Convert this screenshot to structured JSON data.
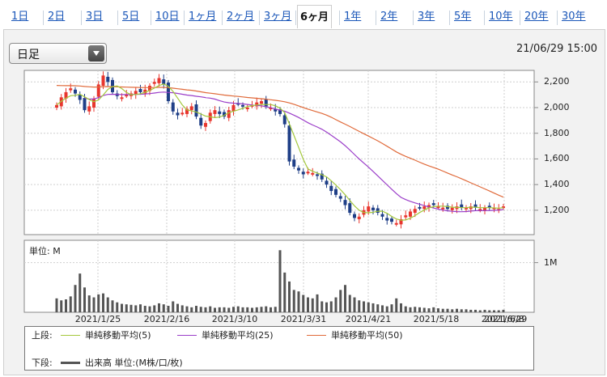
{
  "tabs": [
    {
      "label": "1日",
      "active": false
    },
    {
      "label": "2日",
      "active": false
    },
    {
      "label": "3日",
      "active": false
    },
    {
      "label": "5日",
      "active": false
    },
    {
      "label": "10日",
      "active": false
    },
    {
      "label": "1ヶ月",
      "active": false
    },
    {
      "label": "2ヶ月",
      "active": false
    },
    {
      "label": "3ヶ月",
      "active": false
    },
    {
      "label": "6ヶ月",
      "active": true
    },
    {
      "label": "1年",
      "active": false
    },
    {
      "label": "2年",
      "active": false
    },
    {
      "label": "3年",
      "active": false
    },
    {
      "label": "5年",
      "active": false
    },
    {
      "label": "10年",
      "active": false
    },
    {
      "label": "20年",
      "active": false
    },
    {
      "label": "30年",
      "active": false
    }
  ],
  "period_select": {
    "value": "日足"
  },
  "timestamp": "21/06/29 15:00",
  "colors": {
    "up": "#e8362e",
    "down": "#1f3f87",
    "ma5": "#a4c83c",
    "ma25": "#9b3ec9",
    "ma50": "#e06a3a",
    "volume": "#555555",
    "link": "#1a56b8"
  },
  "chart_data": {
    "type": "candlestick",
    "x_tick_labels": [
      "2021/1/25",
      "2021/2/16",
      "2021/3/10",
      "2021/3/31",
      "2021/4/21",
      "2021/5/18",
      "2021/6/8",
      "2021/6/29"
    ],
    "price_axis": {
      "ticks": [
        1200,
        1400,
        1600,
        1800,
        2000,
        2200
      ],
      "labels": [
        "1,200",
        "1,400",
        "1,600",
        "1,800",
        "2,000",
        "2,200"
      ],
      "range": [
        1010,
        2290
      ]
    },
    "volume_axis": {
      "unit_label": "単位: M",
      "ticks": [
        1
      ],
      "labels": [
        "1M"
      ],
      "range": [
        0,
        1.45
      ]
    },
    "daily_close": [
      2020,
      2080,
      2120,
      2150,
      2110,
      2060,
      1980,
      2010,
      2070,
      2180,
      2250,
      2200,
      2120,
      2090,
      2080,
      2100,
      2110,
      2130,
      2120,
      2140,
      2170,
      2200,
      2230,
      2180,
      2050,
      1970,
      1940,
      1960,
      1990,
      2010,
      1930,
      1860,
      1880,
      1960,
      1980,
      1950,
      1930,
      1980,
      2020,
      2030,
      2010,
      2000,
      2020,
      2040,
      2050,
      2010,
      2000,
      1970,
      1950,
      1870,
      1580,
      1540,
      1510,
      1480,
      1500,
      1490,
      1470,
      1440,
      1400,
      1350,
      1320,
      1290,
      1240,
      1180,
      1140,
      1150,
      1200,
      1230,
      1200,
      1180,
      1150,
      1120,
      1110,
      1100,
      1130,
      1160,
      1190,
      1210,
      1220,
      1230,
      1240,
      1240,
      1230,
      1220,
      1210,
      1220,
      1230,
      1220,
      1220,
      1230,
      1220,
      1210,
      1220,
      1220,
      1220,
      1210,
      1230
    ],
    "daily_volume": [
      0.28,
      0.24,
      0.26,
      0.32,
      0.55,
      0.78,
      0.5,
      0.34,
      0.3,
      0.36,
      0.38,
      0.3,
      0.24,
      0.2,
      0.17,
      0.16,
      0.15,
      0.14,
      0.16,
      0.13,
      0.12,
      0.14,
      0.18,
      0.16,
      0.13,
      0.22,
      0.17,
      0.14,
      0.12,
      0.1,
      0.13,
      0.11,
      0.1,
      0.12,
      0.09,
      0.1,
      0.1,
      0.09,
      0.11,
      0.12,
      0.1,
      0.1,
      0.09,
      0.1,
      0.11,
      0.12,
      0.1,
      0.11,
      1.25,
      0.8,
      0.62,
      0.45,
      0.42,
      0.35,
      0.3,
      0.28,
      0.36,
      0.22,
      0.2,
      0.22,
      0.3,
      0.45,
      0.55,
      0.35,
      0.3,
      0.24,
      0.22,
      0.2,
      0.18,
      0.16,
      0.14,
      0.12,
      0.16,
      0.28,
      0.18,
      0.12,
      0.1,
      0.11,
      0.1,
      0.09,
      0.08,
      0.1,
      0.08,
      0.07,
      0.07,
      0.06,
      0.07,
      0.06,
      0.06,
      0.05,
      0.05,
      0.04,
      0.05,
      0.04,
      0.04,
      0.04,
      0.05
    ],
    "ma_series": [
      "単純移動平均(5)",
      "単純移動平均(25)",
      "単純移動平均(50)"
    ]
  },
  "legend": {
    "upper_label": "上段:",
    "lower_label": "下段:",
    "ma5": "単純移動平均(5)",
    "ma25": "単純移動平均(25)",
    "ma50": "単純移動平均(50)",
    "volume": "出来高 単位:(M株/口/枚)"
  }
}
